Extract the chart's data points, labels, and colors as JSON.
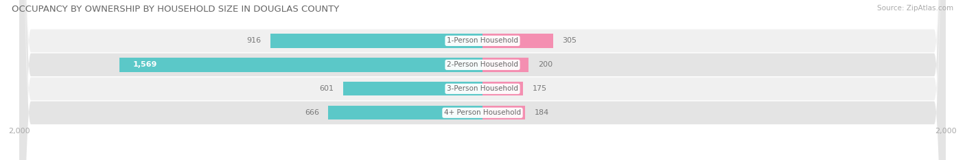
{
  "title": "OCCUPANCY BY OWNERSHIP BY HOUSEHOLD SIZE IN DOUGLAS COUNTY",
  "source": "Source: ZipAtlas.com",
  "categories": [
    "1-Person Household",
    "2-Person Household",
    "3-Person Household",
    "4+ Person Household"
  ],
  "owner_values": [
    916,
    1569,
    601,
    666
  ],
  "renter_values": [
    305,
    200,
    175,
    184
  ],
  "axis_max": 2000,
  "owner_color": "#5bc8c8",
  "renter_color": "#f48fb1",
  "row_bg_color_odd": "#f0f0f0",
  "row_bg_color_even": "#e4e4e4",
  "label_color": "#777777",
  "label_inside_color": "#ffffff",
  "center_label_color": "#666666",
  "title_color": "#666666",
  "axis_label_color": "#aaaaaa",
  "background_color": "#ffffff",
  "owner_label_threshold": 1200
}
